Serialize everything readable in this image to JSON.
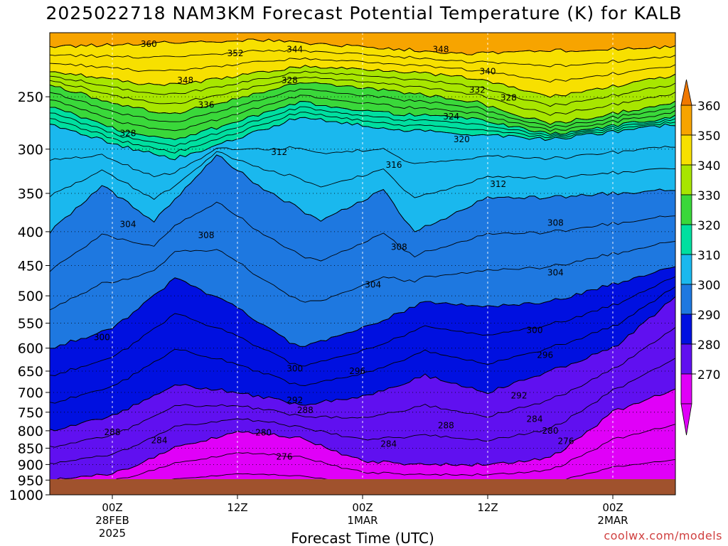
{
  "chart_data": {
    "type": "contour",
    "title": "2025022718 NAM3KM Forecast Potential Temperature (K) for KALB",
    "xlabel": "Forecast Time (UTC)",
    "ylabel": "",
    "x_ticks": [
      {
        "label": "00Z",
        "sub": [
          "28FEB",
          "2025"
        ],
        "hour": 6
      },
      {
        "label": "12Z",
        "sub": [],
        "hour": 18
      },
      {
        "label": "00Z",
        "sub": [
          "1MAR"
        ],
        "hour": 30
      },
      {
        "label": "12Z",
        "sub": [],
        "hour": 42
      },
      {
        "label": "00Z",
        "sub": [
          "2MAR"
        ],
        "hour": 54
      }
    ],
    "xlim_hours": [
      0,
      60
    ],
    "y_ticks": [
      250,
      300,
      350,
      400,
      450,
      500,
      550,
      600,
      650,
      700,
      750,
      800,
      850,
      900,
      950,
      1000
    ],
    "ylim": [
      200,
      1000
    ],
    "y_scale": "log-pressure",
    "grid": true,
    "colorbar": {
      "labels": [
        360,
        350,
        340,
        330,
        320,
        310,
        300,
        290,
        280,
        270
      ],
      "bands": [
        {
          "lo": 350,
          "hi": 360,
          "color": "#f7a400"
        },
        {
          "lo": 340,
          "hi": 350,
          "color": "#f7e000"
        },
        {
          "lo": 330,
          "hi": 340,
          "color": "#a8e600"
        },
        {
          "lo": 320,
          "hi": 330,
          "color": "#3ad83a"
        },
        {
          "lo": 310,
          "hi": 320,
          "color": "#00dfa0"
        },
        {
          "lo": 300,
          "hi": 310,
          "color": "#1ab8ee"
        },
        {
          "lo": 290,
          "hi": 300,
          "color": "#1e78e0"
        },
        {
          "lo": 280,
          "hi": 290,
          "color": "#0010e0"
        },
        {
          "lo": 270,
          "hi": 280,
          "color": "#6010f0"
        },
        {
          "lo": 260,
          "hi": 270,
          "color": "#e000f8"
        }
      ],
      "top_cap_color": "#f07800",
      "bottom_cap_color": "#e000f8"
    },
    "ground_color": "#a0522d",
    "color_regions": [
      {
        "color": "#f7a400",
        "top": [
          40,
          40
        ],
        "bottom": [
          [
            0,
            210
          ],
          [
            20,
            205
          ],
          [
            40,
            215
          ],
          [
            60,
            210
          ]
        ]
      },
      {
        "color": "#f7e000",
        "top": [
          [
            0,
            210
          ],
          [
            20,
            205
          ],
          [
            40,
            215
          ],
          [
            60,
            210
          ]
        ],
        "bottom": [
          [
            0,
            228
          ],
          [
            8,
            238
          ],
          [
            12,
            240
          ],
          [
            24,
            225
          ],
          [
            33,
            228
          ],
          [
            41,
            235
          ],
          [
            48,
            250
          ],
          [
            60,
            232
          ]
        ]
      },
      {
        "color": "#a8e600",
        "top": [
          [
            0,
            228
          ],
          [
            8,
            238
          ],
          [
            12,
            240
          ],
          [
            24,
            225
          ],
          [
            33,
            228
          ],
          [
            41,
            235
          ],
          [
            48,
            250
          ],
          [
            60,
            232
          ]
        ],
        "bottom": [
          [
            0,
            240
          ],
          [
            8,
            260
          ],
          [
            12,
            265
          ],
          [
            24,
            238
          ],
          [
            33,
            245
          ],
          [
            41,
            255
          ],
          [
            48,
            275
          ],
          [
            60,
            255
          ]
        ]
      },
      {
        "color": "#3ad83a",
        "top": [
          [
            0,
            240
          ],
          [
            8,
            260
          ],
          [
            12,
            265
          ],
          [
            24,
            238
          ],
          [
            33,
            245
          ],
          [
            41,
            255
          ],
          [
            48,
            275
          ],
          [
            60,
            255
          ]
        ],
        "bottom": [
          [
            0,
            258
          ],
          [
            8,
            285
          ],
          [
            12,
            290
          ],
          [
            24,
            255
          ],
          [
            33,
            265
          ],
          [
            41,
            270
          ],
          [
            48,
            285
          ],
          [
            60,
            268
          ]
        ]
      },
      {
        "color": "#00dfa0",
        "top": [
          [
            0,
            258
          ],
          [
            8,
            285
          ],
          [
            12,
            290
          ],
          [
            24,
            255
          ],
          [
            33,
            265
          ],
          [
            41,
            270
          ],
          [
            48,
            285
          ],
          [
            60,
            268
          ]
        ],
        "bottom": [
          [
            0,
            275
          ],
          [
            8,
            300
          ],
          [
            12,
            310
          ],
          [
            24,
            268
          ],
          [
            33,
            280
          ],
          [
            41,
            285
          ],
          [
            48,
            290
          ],
          [
            60,
            275
          ]
        ]
      },
      {
        "color": "#1ab8ee",
        "top": [
          [
            0,
            275
          ],
          [
            8,
            300
          ],
          [
            12,
            310
          ],
          [
            24,
            268
          ],
          [
            33,
            280
          ],
          [
            41,
            285
          ],
          [
            48,
            290
          ],
          [
            60,
            275
          ]
        ],
        "bottom": [
          [
            0,
            400
          ],
          [
            5,
            340
          ],
          [
            10,
            385
          ],
          [
            16,
            305
          ],
          [
            20,
            340
          ],
          [
            26,
            385
          ],
          [
            32,
            345
          ],
          [
            35,
            400
          ],
          [
            42,
            355
          ],
          [
            48,
            355
          ],
          [
            54,
            350
          ],
          [
            60,
            345
          ]
        ]
      },
      {
        "color": "#1e78e0",
        "top": [
          [
            0,
            400
          ],
          [
            5,
            340
          ],
          [
            10,
            385
          ],
          [
            16,
            305
          ],
          [
            20,
            340
          ],
          [
            26,
            385
          ],
          [
            32,
            345
          ],
          [
            35,
            400
          ],
          [
            42,
            355
          ],
          [
            48,
            355
          ],
          [
            54,
            350
          ],
          [
            60,
            345
          ]
        ],
        "bottom": [
          [
            0,
            600
          ],
          [
            6,
            560
          ],
          [
            12,
            470
          ],
          [
            18,
            520
          ],
          [
            24,
            600
          ],
          [
            30,
            560
          ],
          [
            36,
            510
          ],
          [
            42,
            520
          ],
          [
            48,
            510
          ],
          [
            54,
            480
          ],
          [
            60,
            450
          ]
        ]
      },
      {
        "color": "#0010e0",
        "top": [
          [
            0,
            600
          ],
          [
            6,
            560
          ],
          [
            12,
            470
          ],
          [
            18,
            520
          ],
          [
            24,
            600
          ],
          [
            30,
            560
          ],
          [
            36,
            510
          ],
          [
            42,
            520
          ],
          [
            48,
            510
          ],
          [
            54,
            480
          ],
          [
            60,
            450
          ]
        ],
        "bottom": [
          [
            0,
            800
          ],
          [
            6,
            760
          ],
          [
            12,
            680
          ],
          [
            18,
            700
          ],
          [
            24,
            730
          ],
          [
            30,
            710
          ],
          [
            36,
            660
          ],
          [
            42,
            700
          ],
          [
            48,
            650
          ],
          [
            54,
            600
          ],
          [
            60,
            500
          ]
        ]
      },
      {
        "color": "#6010f0",
        "top": [
          [
            0,
            800
          ],
          [
            6,
            760
          ],
          [
            12,
            680
          ],
          [
            18,
            700
          ],
          [
            24,
            730
          ],
          [
            30,
            710
          ],
          [
            36,
            660
          ],
          [
            42,
            700
          ],
          [
            48,
            650
          ],
          [
            54,
            600
          ],
          [
            60,
            500
          ]
        ],
        "bottom": [
          [
            0,
            950
          ],
          [
            6,
            930
          ],
          [
            12,
            850
          ],
          [
            18,
            800
          ],
          [
            24,
            820
          ],
          [
            30,
            890
          ],
          [
            36,
            900
          ],
          [
            42,
            900
          ],
          [
            48,
            880
          ],
          [
            54,
            750
          ],
          [
            60,
            690
          ]
        ]
      },
      {
        "color": "#e000f8",
        "top": [
          [
            0,
            950
          ],
          [
            6,
            930
          ],
          [
            12,
            850
          ],
          [
            18,
            800
          ],
          [
            24,
            820
          ],
          [
            30,
            890
          ],
          [
            36,
            900
          ],
          [
            42,
            900
          ],
          [
            48,
            880
          ],
          [
            54,
            750
          ],
          [
            60,
            690
          ]
        ],
        "bottom": [
          [
            0,
            1000
          ],
          [
            60,
            1000
          ]
        ]
      }
    ],
    "contour_labels": [
      {
        "text": "360",
        "hour": 9.5,
        "p": 208
      },
      {
        "text": "352",
        "hour": 17.8,
        "p": 215
      },
      {
        "text": "344",
        "hour": 23.5,
        "p": 212
      },
      {
        "text": "348",
        "hour": 37.5,
        "p": 212
      },
      {
        "text": "348",
        "hour": 13,
        "p": 236
      },
      {
        "text": "340",
        "hour": 42,
        "p": 229
      },
      {
        "text": "328",
        "hour": 23,
        "p": 236
      },
      {
        "text": "332",
        "hour": 41,
        "p": 244
      },
      {
        "text": "328",
        "hour": 44,
        "p": 251
      },
      {
        "text": "336",
        "hour": 15,
        "p": 257
      },
      {
        "text": "324",
        "hour": 38.5,
        "p": 268
      },
      {
        "text": "328",
        "hour": 7.5,
        "p": 284
      },
      {
        "text": "320",
        "hour": 39.5,
        "p": 290
      },
      {
        "text": "312",
        "hour": 22,
        "p": 303
      },
      {
        "text": "316",
        "hour": 33,
        "p": 317
      },
      {
        "text": "312",
        "hour": 43,
        "p": 339
      },
      {
        "text": "304",
        "hour": 7.5,
        "p": 390
      },
      {
        "text": "308",
        "hour": 15,
        "p": 405
      },
      {
        "text": "308",
        "hour": 48.5,
        "p": 388
      },
      {
        "text": "308",
        "hour": 33.5,
        "p": 422
      },
      {
        "text": "304",
        "hour": 31,
        "p": 481
      },
      {
        "text": "304",
        "hour": 48.5,
        "p": 461
      },
      {
        "text": "300",
        "hour": 5,
        "p": 578
      },
      {
        "text": "300",
        "hour": 46.5,
        "p": 564
      },
      {
        "text": "296",
        "hour": 47.5,
        "p": 615
      },
      {
        "text": "300",
        "hour": 23.5,
        "p": 644
      },
      {
        "text": "296",
        "hour": 29.5,
        "p": 650
      },
      {
        "text": "292",
        "hour": 45,
        "p": 708
      },
      {
        "text": "292",
        "hour": 23.5,
        "p": 719
      },
      {
        "text": "288",
        "hour": 24.5,
        "p": 745
      },
      {
        "text": "288",
        "hour": 6,
        "p": 804
      },
      {
        "text": "288",
        "hour": 38,
        "p": 786
      },
      {
        "text": "284",
        "hour": 46.5,
        "p": 768
      },
      {
        "text": "280",
        "hour": 48,
        "p": 800
      },
      {
        "text": "284",
        "hour": 10.5,
        "p": 827
      },
      {
        "text": "280",
        "hour": 20.5,
        "p": 805
      },
      {
        "text": "284",
        "hour": 32.5,
        "p": 838
      },
      {
        "text": "276",
        "hour": 49.5,
        "p": 830
      },
      {
        "text": "276",
        "hour": 22.5,
        "p": 876
      }
    ]
  },
  "credit": "coolwx.com/models"
}
